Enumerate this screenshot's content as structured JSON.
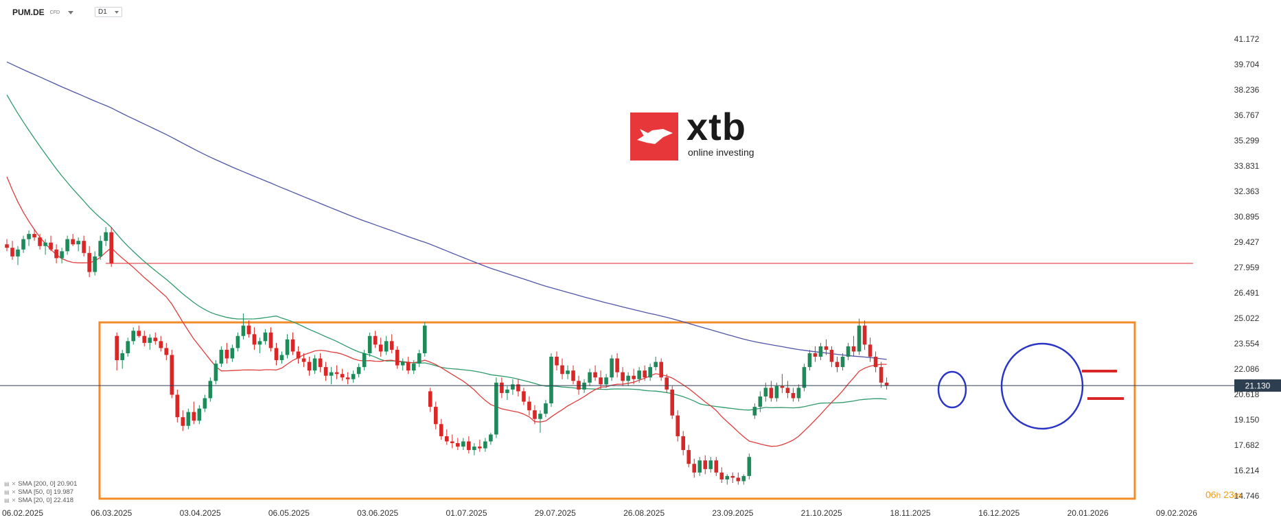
{
  "header": {
    "symbol": "PUM.DE",
    "instrument_type": "CFD",
    "timeframe": "D1"
  },
  "logo": {
    "brand": "xtb",
    "tagline": "online investing",
    "color": "#e8373a"
  },
  "legend": [
    {
      "label": "SMA  [200,  0]  20.901",
      "color": "#4f55a8"
    },
    {
      "label": "SMA  [50,  0]  19.987",
      "color": "#2e9a6a"
    },
    {
      "label": "SMA  [20,  0]  22.418",
      "color": "#e03c3c"
    }
  ],
  "countdown": {
    "hours": "06",
    "h_unit": "h",
    "minutes": "23",
    "m_unit": "m"
  },
  "chart_data": {
    "type": "candlestick",
    "y_ticks": [
      "41.172",
      "39.704",
      "38.236",
      "36.767",
      "35.299",
      "33.831",
      "32.363",
      "30.895",
      "29.427",
      "27.959",
      "26.491",
      "25.022",
      "23.554",
      "22.086",
      "20.618",
      "19.150",
      "17.682",
      "16.214",
      "14.746"
    ],
    "y_range": [
      14.746,
      41.172
    ],
    "x_ticks": [
      "06.02.2025",
      "06.03.2025",
      "03.04.2025",
      "06.05.2025",
      "03.06.2025",
      "01.07.2025",
      "29.07.2025",
      "26.08.2025",
      "23.09.2025",
      "21.10.2025",
      "18.11.2025",
      "16.12.2025",
      "20.01.2026",
      "09.02.2026"
    ],
    "current_price": "21.130",
    "horizontal_line": 28.2,
    "colors": {
      "up": "#1e8a5a",
      "down": "#d92626",
      "sma200": "#4f55a8",
      "sma50": "#2e9a6a",
      "sma20": "#e03c3c",
      "range_box": "#f28c28",
      "circle": "#2a35c8",
      "price_line": "#2c3e50"
    },
    "candles": [
      [
        29.3,
        29.6,
        28.9,
        29.1
      ],
      [
        29.1,
        29.5,
        28.4,
        28.6
      ],
      [
        28.6,
        29.2,
        28.1,
        29.0
      ],
      [
        29.0,
        29.8,
        28.8,
        29.6
      ],
      [
        29.6,
        30.1,
        29.2,
        29.9
      ],
      [
        29.9,
        30.2,
        29.5,
        29.7
      ],
      [
        29.7,
        29.9,
        29.0,
        29.2
      ],
      [
        29.2,
        29.6,
        28.7,
        29.4
      ],
      [
        29.4,
        29.8,
        28.9,
        29.0
      ],
      [
        29.0,
        29.3,
        28.2,
        28.5
      ],
      [
        28.5,
        29.1,
        28.2,
        28.9
      ],
      [
        28.9,
        29.8,
        28.7,
        29.6
      ],
      [
        29.6,
        29.9,
        29.2,
        29.3
      ],
      [
        29.3,
        29.7,
        28.9,
        29.5
      ],
      [
        29.5,
        29.8,
        28.6,
        28.8
      ],
      [
        28.8,
        29.2,
        27.4,
        27.7
      ],
      [
        27.7,
        28.9,
        27.5,
        28.6
      ],
      [
        28.6,
        29.8,
        28.4,
        29.5
      ],
      [
        29.5,
        30.3,
        29.2,
        30.0
      ],
      [
        30.0,
        30.3,
        28.0,
        28.2
      ],
      [
        24.0,
        24.2,
        22.0,
        22.6
      ],
      [
        22.6,
        23.2,
        22.1,
        23.0
      ],
      [
        23.0,
        23.9,
        22.8,
        23.7
      ],
      [
        23.7,
        24.5,
        23.5,
        24.3
      ],
      [
        24.3,
        24.6,
        23.9,
        24.0
      ],
      [
        24.0,
        24.3,
        23.4,
        23.6
      ],
      [
        23.6,
        24.1,
        23.2,
        23.9
      ],
      [
        23.9,
        24.2,
        23.5,
        23.7
      ],
      [
        23.7,
        24.0,
        23.1,
        23.3
      ],
      [
        23.3,
        23.6,
        22.6,
        22.9
      ],
      [
        22.9,
        23.2,
        20.4,
        20.6
      ],
      [
        20.6,
        20.9,
        19.0,
        19.3
      ],
      [
        19.3,
        19.7,
        18.5,
        18.8
      ],
      [
        18.8,
        19.8,
        18.6,
        19.6
      ],
      [
        19.6,
        20.2,
        18.9,
        19.1
      ],
      [
        19.1,
        20.0,
        18.9,
        19.8
      ],
      [
        19.8,
        20.6,
        19.6,
        20.4
      ],
      [
        20.4,
        21.6,
        20.2,
        21.4
      ],
      [
        21.4,
        22.6,
        21.2,
        22.4
      ],
      [
        22.4,
        23.4,
        22.2,
        23.2
      ],
      [
        23.2,
        23.6,
        22.4,
        22.7
      ],
      [
        22.7,
        23.5,
        22.5,
        23.3
      ],
      [
        23.3,
        24.2,
        23.1,
        24.0
      ],
      [
        24.0,
        25.3,
        23.8,
        24.6
      ],
      [
        24.6,
        24.9,
        23.9,
        24.1
      ],
      [
        24.1,
        24.5,
        23.2,
        23.5
      ],
      [
        23.5,
        23.9,
        23.0,
        23.7
      ],
      [
        23.7,
        24.4,
        23.5,
        24.2
      ],
      [
        24.2,
        24.5,
        23.1,
        23.3
      ],
      [
        23.3,
        23.6,
        22.3,
        22.6
      ],
      [
        22.6,
        23.1,
        22.4,
        22.9
      ],
      [
        22.9,
        24.1,
        22.7,
        23.8
      ],
      [
        23.8,
        24.2,
        22.9,
        23.1
      ],
      [
        23.1,
        23.4,
        22.4,
        22.7
      ],
      [
        22.7,
        23.0,
        22.2,
        22.5
      ],
      [
        22.5,
        22.8,
        21.7,
        22.0
      ],
      [
        22.0,
        22.9,
        21.8,
        22.7
      ],
      [
        22.7,
        23.0,
        21.9,
        22.2
      ],
      [
        22.2,
        22.5,
        21.4,
        21.7
      ],
      [
        21.7,
        22.2,
        21.2,
        21.9
      ],
      [
        21.9,
        22.3,
        21.5,
        21.8
      ],
      [
        21.8,
        22.1,
        21.4,
        21.6
      ],
      [
        21.6,
        21.9,
        21.2,
        21.5
      ],
      [
        21.5,
        22.0,
        21.3,
        21.8
      ],
      [
        21.8,
        22.4,
        21.6,
        22.2
      ],
      [
        22.2,
        23.2,
        22.0,
        23.0
      ],
      [
        23.0,
        24.2,
        22.8,
        24.0
      ],
      [
        24.0,
        24.3,
        23.3,
        23.5
      ],
      [
        23.5,
        23.9,
        22.8,
        23.1
      ],
      [
        23.1,
        24.0,
        22.9,
        23.7
      ],
      [
        23.7,
        24.1,
        23.0,
        23.2
      ],
      [
        23.2,
        23.4,
        22.1,
        22.3
      ],
      [
        22.3,
        22.7,
        22.0,
        22.5
      ],
      [
        22.5,
        22.8,
        21.8,
        22.0
      ],
      [
        22.0,
        22.6,
        21.8,
        22.4
      ],
      [
        22.4,
        23.2,
        22.2,
        23.0
      ],
      [
        23.0,
        24.8,
        22.8,
        24.6
      ],
      [
        20.8,
        21.0,
        19.6,
        19.9
      ],
      [
        19.9,
        20.2,
        18.6,
        18.9
      ],
      [
        18.9,
        19.2,
        18.0,
        18.2
      ],
      [
        18.2,
        18.6,
        17.7,
        17.9
      ],
      [
        17.9,
        18.3,
        17.5,
        17.8
      ],
      [
        17.8,
        18.1,
        17.4,
        17.6
      ],
      [
        17.6,
        18.1,
        17.4,
        17.9
      ],
      [
        17.9,
        18.2,
        17.2,
        17.4
      ],
      [
        17.4,
        17.8,
        17.1,
        17.6
      ],
      [
        17.6,
        18.0,
        17.3,
        17.5
      ],
      [
        17.5,
        18.1,
        17.3,
        17.9
      ],
      [
        17.9,
        18.4,
        17.7,
        18.3
      ],
      [
        18.3,
        21.6,
        18.1,
        21.3
      ],
      [
        21.3,
        21.6,
        20.4,
        20.7
      ],
      [
        20.7,
        21.1,
        20.3,
        20.9
      ],
      [
        20.9,
        21.5,
        20.6,
        21.2
      ],
      [
        21.2,
        21.5,
        20.5,
        20.8
      ],
      [
        20.8,
        21.0,
        20.0,
        20.2
      ],
      [
        20.2,
        20.5,
        19.4,
        19.7
      ],
      [
        19.7,
        20.0,
        18.9,
        19.2
      ],
      [
        19.2,
        19.7,
        18.4,
        19.5
      ],
      [
        19.5,
        20.3,
        19.3,
        20.1
      ],
      [
        20.1,
        23.0,
        19.9,
        22.8
      ],
      [
        22.8,
        23.1,
        22.0,
        22.3
      ],
      [
        22.3,
        22.7,
        21.5,
        21.8
      ],
      [
        21.8,
        22.3,
        21.5,
        22.0
      ],
      [
        22.0,
        22.3,
        21.2,
        21.4
      ],
      [
        21.4,
        21.7,
        20.6,
        20.9
      ],
      [
        20.9,
        21.5,
        20.7,
        21.3
      ],
      [
        21.3,
        22.1,
        21.1,
        21.9
      ],
      [
        21.9,
        22.3,
        21.4,
        21.6
      ],
      [
        21.6,
        22.0,
        20.9,
        21.2
      ],
      [
        21.2,
        21.8,
        21.0,
        21.6
      ],
      [
        21.6,
        22.9,
        21.4,
        22.7
      ],
      [
        22.7,
        23.0,
        21.6,
        21.9
      ],
      [
        21.9,
        22.2,
        21.1,
        21.4
      ],
      [
        21.4,
        21.9,
        21.1,
        21.7
      ],
      [
        21.7,
        22.1,
        21.2,
        21.5
      ],
      [
        21.5,
        22.2,
        21.3,
        22.0
      ],
      [
        22.0,
        22.3,
        21.4,
        21.6
      ],
      [
        21.6,
        22.4,
        21.4,
        22.2
      ],
      [
        22.2,
        22.8,
        22.0,
        22.5
      ],
      [
        22.5,
        22.7,
        21.4,
        21.6
      ],
      [
        21.6,
        21.8,
        20.7,
        20.9
      ],
      [
        20.9,
        21.1,
        19.2,
        19.4
      ],
      [
        19.4,
        19.7,
        17.9,
        18.2
      ],
      [
        18.2,
        18.5,
        17.1,
        17.4
      ],
      [
        17.4,
        17.7,
        16.4,
        16.6
      ],
      [
        16.6,
        16.9,
        15.8,
        16.1
      ],
      [
        16.1,
        17.0,
        15.9,
        16.8
      ],
      [
        16.8,
        17.1,
        16.0,
        16.3
      ],
      [
        16.3,
        17.0,
        16.1,
        16.8
      ],
      [
        16.8,
        17.0,
        15.9,
        16.1
      ],
      [
        16.1,
        16.4,
        15.5,
        15.7
      ],
      [
        15.7,
        16.0,
        15.4,
        15.9
      ],
      [
        15.9,
        16.1,
        15.5,
        15.8
      ],
      [
        15.8,
        16.1,
        15.4,
        15.6
      ],
      [
        15.6,
        16.0,
        15.4,
        15.9
      ],
      [
        15.9,
        17.2,
        15.7,
        17.0
      ],
      [
        19.4,
        20.1,
        19.2,
        19.9
      ],
      [
        19.9,
        20.8,
        19.6,
        20.5
      ],
      [
        20.5,
        21.3,
        20.2,
        21.0
      ],
      [
        21.0,
        21.4,
        20.2,
        20.4
      ],
      [
        20.4,
        21.3,
        20.2,
        21.1
      ],
      [
        21.1,
        21.8,
        20.7,
        21.0
      ],
      [
        21.0,
        21.4,
        20.4,
        20.7
      ],
      [
        20.7,
        21.0,
        20.2,
        20.4
      ],
      [
        20.4,
        21.2,
        20.2,
        21.0
      ],
      [
        21.0,
        22.4,
        20.8,
        22.2
      ],
      [
        22.2,
        23.2,
        22.0,
        23.0
      ],
      [
        23.0,
        23.4,
        22.5,
        22.8
      ],
      [
        22.8,
        23.6,
        22.6,
        23.4
      ],
      [
        23.4,
        23.8,
        22.9,
        23.2
      ],
      [
        23.2,
        23.4,
        22.2,
        22.5
      ],
      [
        22.5,
        22.8,
        21.9,
        22.2
      ],
      [
        22.2,
        23.0,
        22.0,
        22.8
      ],
      [
        22.8,
        23.6,
        22.6,
        23.4
      ],
      [
        23.4,
        24.0,
        22.8,
        23.1
      ],
      [
        23.1,
        25.0,
        22.9,
        24.6
      ],
      [
        24.6,
        24.9,
        23.2,
        23.5
      ],
      [
        23.5,
        23.9,
        22.5,
        22.8
      ],
      [
        22.8,
        23.1,
        21.9,
        22.2
      ],
      [
        22.2,
        22.5,
        21.0,
        21.3
      ],
      [
        21.3,
        21.6,
        20.9,
        21.13
      ]
    ]
  }
}
